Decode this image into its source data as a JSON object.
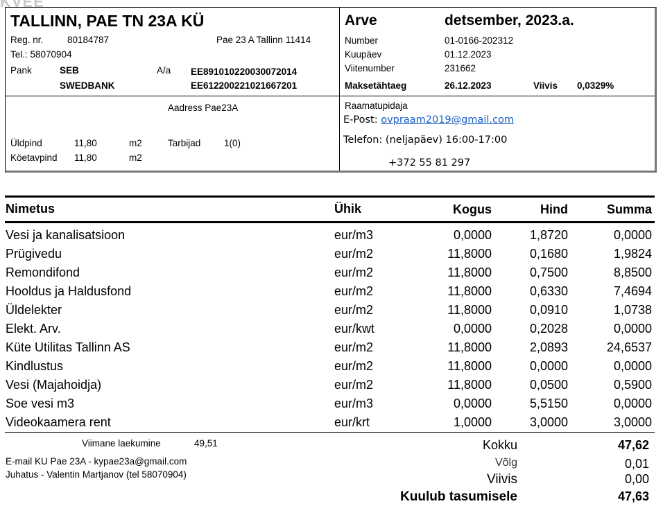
{
  "logo": "KVEE",
  "company": {
    "name": "TALLINN, PAE TN 23A KÜ",
    "reg_label": "Reg. nr.",
    "reg_value": "80184787",
    "address": "Pae 23 A Tallinn 11414",
    "tel": "Tel.: 58070904",
    "bank_label": "Pank",
    "aa_label": "A/a",
    "banks": [
      {
        "name": "SEB",
        "account": "EE891010220030072014"
      },
      {
        "name": "SWEDBANK",
        "account": "EE612200221021667201"
      }
    ]
  },
  "invoice": {
    "title": "Arve",
    "period": "detsember, 2023.a.",
    "number_label": "Number",
    "number": "01-0166-202312",
    "date_label": "Kuupäev",
    "date": "01.12.2023",
    "ref_label": "Viitenumber",
    "ref": "231662",
    "due_label": "Maksetähtaeg",
    "due": "26.12.2023",
    "penalty_label": "Viivis",
    "penalty": "0,0329%"
  },
  "property": {
    "address": "Aadress Pae23A",
    "area_label": "Üldpind",
    "area": "11,80",
    "area_unit": "m2",
    "consumers_label": "Tarbijad",
    "consumers": "1(0)",
    "heated_label": "Köetavpind",
    "heated": "11,80",
    "heated_unit": "m2"
  },
  "accountant": {
    "label": "Raamatupidaja",
    "email_label": "E-Post:",
    "email": "ovpraam2019@gmail.com",
    "phone_hours": "Telefon: (neljapäev) 16:00-17:00",
    "phone": "+372 55 81 297"
  },
  "table": {
    "headers": [
      "Nimetus",
      "Ühik",
      "Kogus",
      "Hind",
      "Summa"
    ],
    "rows": [
      [
        "Vesi ja kanalisatsioon",
        "eur/m3",
        "0,0000",
        "1,8720",
        "0,0000"
      ],
      [
        "Prügivedu",
        "eur/m2",
        "11,8000",
        "0,1680",
        "1,9824"
      ],
      [
        "Remondifond",
        "eur/m2",
        "11,8000",
        "0,7500",
        "8,8500"
      ],
      [
        "Hooldus ja Haldusfond",
        "eur/m2",
        "11,8000",
        "0,6330",
        "7,4694"
      ],
      [
        "Üldelekter",
        "eur/m2",
        "11,8000",
        "0,0910",
        "1,0738"
      ],
      [
        "Elekt. Arv.",
        "eur/kwt",
        "0,0000",
        "0,2028",
        "0,0000"
      ],
      [
        "Küte Utilitas Tallinn AS",
        "eur/m2",
        "11,8000",
        "2,0893",
        "24,6537"
      ],
      [
        "Kindlustus",
        "eur/m2",
        "11,8000",
        "0,0000",
        "0,0000"
      ],
      [
        "Vesi (Majahoidja)",
        "eur/m2",
        "11,8000",
        "0,0500",
        "0,5900"
      ],
      [
        "Soe vesi m3",
        "eur/m3",
        "0,0000",
        "5,5150",
        "0,0000"
      ],
      [
        "Videokaamera rent",
        "eur/krt",
        "1,0000",
        "3,0000",
        "3,0000"
      ]
    ]
  },
  "footer": {
    "last_payment_label": "Viimane laekumine",
    "last_payment": "49,51",
    "email_line": "E-mail KU Pae 23A  - kypae23a@gmail.com",
    "board_line": "Juhatus - Valentin Martjanov (tel 58070904)",
    "total_label": "Kokku",
    "total": "47,62",
    "debt_label": "Võlg",
    "debt": "0,01",
    "penalty_label": "Viivis",
    "penalty": "0,00",
    "due_label": "Kuulub tasumisele",
    "due": "47,63"
  }
}
